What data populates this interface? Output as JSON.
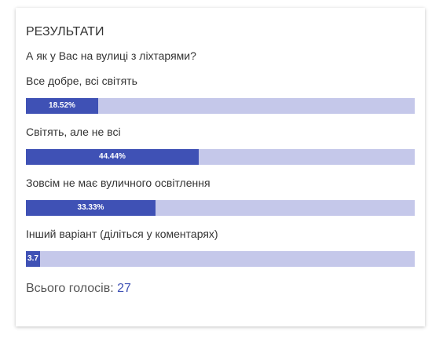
{
  "poll": {
    "title": "РЕЗУЛЬТАТИ",
    "question": "А як у Вас на вулиці з ліхтарями?",
    "options": [
      {
        "label": "Все добре, всі світять",
        "percent_label": "18.52%",
        "fraction": 0.1852
      },
      {
        "label": "Світять, але не всі",
        "percent_label": "44.44%",
        "fraction": 0.4444
      },
      {
        "label": "Зовсім не має вуличного освітлення",
        "percent_label": "33.33%",
        "fraction": 0.3333
      },
      {
        "label": "Інший варіант (діліться у коментарях)",
        "percent_label": "3.7",
        "fraction": 0.037
      }
    ],
    "total_label": "Всього голосів:",
    "total_count": "27"
  },
  "colors": {
    "bar_fill": "#3f51b5",
    "bar_track": "#c5c8ea",
    "accent": "#3f51b5"
  }
}
